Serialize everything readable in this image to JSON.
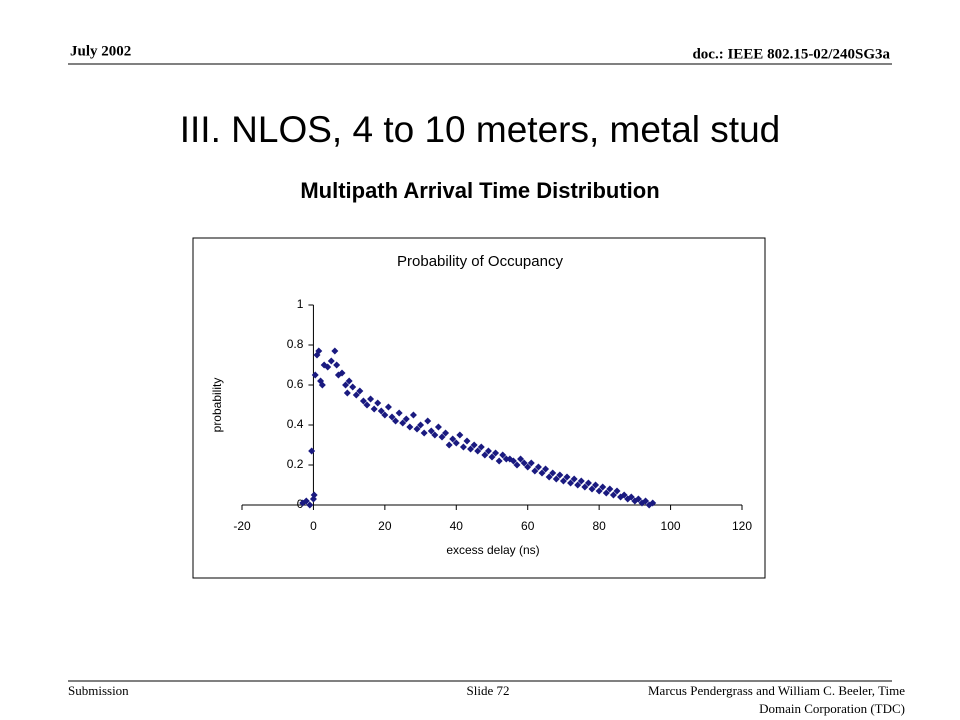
{
  "header": {
    "date": "July 2002",
    "doc": "doc.: IEEE 802.15-02/240SG3a"
  },
  "slide": {
    "title": "III.  NLOS, 4 to 10 meters, metal stud",
    "subtitle": "Multipath Arrival Time Distribution"
  },
  "footer": {
    "left": "Submission",
    "center": "Slide 72",
    "right": [
      "Marcus Pendergrass and William  C. Beeler, Time",
      "Domain Corporation (TDC)"
    ]
  },
  "chart_data": {
    "type": "scatter",
    "title": "Probability of Occupancy",
    "x_label": "excess delay (ns)",
    "y_label": "probability",
    "xlim": [
      -20,
      120
    ],
    "xticks": [
      -20,
      0,
      20,
      40,
      60,
      80,
      100,
      120
    ],
    "ylim": [
      0,
      1
    ],
    "yticks": [
      0,
      0.2,
      0.4,
      0.6,
      0.8,
      1
    ],
    "series": [
      {
        "color": "#1a1a80",
        "x": [
          -3,
          -2,
          -1,
          -0.5,
          0,
          0.2,
          0.5,
          1,
          1.5,
          2,
          2.5,
          3,
          4,
          5,
          6,
          6.5,
          7,
          8,
          9,
          9.5,
          10,
          11,
          12,
          13,
          14,
          15,
          16,
          17,
          18,
          19,
          20,
          21,
          22,
          23,
          24,
          25,
          26,
          27,
          28,
          29,
          30,
          31,
          32,
          33,
          34,
          35,
          36,
          37,
          38,
          39,
          40,
          41,
          42,
          43,
          44,
          45,
          46,
          47,
          48,
          49,
          50,
          51,
          52,
          53,
          54,
          55,
          56,
          57,
          58,
          59,
          60,
          61,
          62,
          63,
          64,
          65,
          66,
          67,
          68,
          69,
          70,
          71,
          72,
          73,
          74,
          75,
          76,
          77,
          78,
          79,
          80,
          81,
          82,
          83,
          84,
          85,
          86,
          87,
          88,
          89,
          90,
          91,
          92,
          93,
          94,
          95
        ],
        "values": [
          0.01,
          0.02,
          0.0,
          0.27,
          0.03,
          0.05,
          0.65,
          0.75,
          0.77,
          0.62,
          0.6,
          0.7,
          0.69,
          0.72,
          0.77,
          0.7,
          0.65,
          0.66,
          0.6,
          0.56,
          0.62,
          0.59,
          0.55,
          0.57,
          0.52,
          0.5,
          0.53,
          0.48,
          0.51,
          0.47,
          0.45,
          0.49,
          0.44,
          0.42,
          0.46,
          0.41,
          0.43,
          0.39,
          0.45,
          0.38,
          0.4,
          0.36,
          0.42,
          0.37,
          0.35,
          0.39,
          0.34,
          0.36,
          0.3,
          0.33,
          0.31,
          0.35,
          0.29,
          0.32,
          0.28,
          0.3,
          0.27,
          0.29,
          0.25,
          0.27,
          0.24,
          0.26,
          0.22,
          0.25,
          0.23,
          0.23,
          0.22,
          0.2,
          0.23,
          0.21,
          0.19,
          0.21,
          0.17,
          0.19,
          0.16,
          0.18,
          0.14,
          0.16,
          0.13,
          0.15,
          0.12,
          0.14,
          0.11,
          0.13,
          0.1,
          0.12,
          0.09,
          0.11,
          0.08,
          0.1,
          0.07,
          0.09,
          0.06,
          0.08,
          0.05,
          0.07,
          0.04,
          0.05,
          0.03,
          0.04,
          0.02,
          0.03,
          0.01,
          0.02,
          0.0,
          0.01
        ]
      }
    ]
  }
}
